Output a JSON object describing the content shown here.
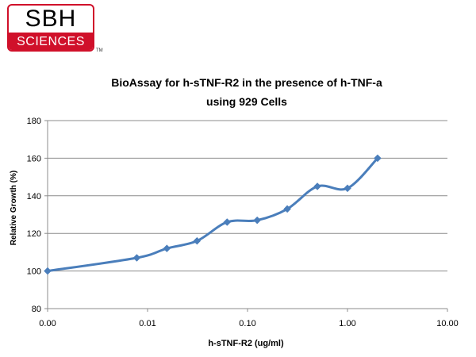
{
  "logo": {
    "top_text": "SBH",
    "bottom_text": "SCIENCES",
    "tm": "TM",
    "colors": {
      "red": "#d0102a",
      "black": "#000000"
    }
  },
  "chart_data": {
    "type": "line",
    "title_lines": [
      "BioAssay for h-sTNF-R2  in the presence of h-TNF-a",
      "using 929 Cells"
    ],
    "xlabel": "h-sTNF-R2 (ug/ml)",
    "ylabel": "Relative Growth (%)",
    "x_scale": "log",
    "xlim": [
      0.001,
      10
    ],
    "x_tick_values": [
      0.001,
      0.01,
      0.1,
      1,
      10
    ],
    "x_tick_labels": [
      "0.00",
      "0.01",
      "0.10",
      "1.00",
      "10.00"
    ],
    "ylim": [
      80,
      180
    ],
    "y_ticks": [
      80,
      100,
      120,
      140,
      160,
      180
    ],
    "grid": "horizontal",
    "legend": "none",
    "series": [
      {
        "color": "#4a7ebb",
        "marker": "diamond",
        "smooth": true,
        "x": [
          0.001,
          0.0078,
          0.0156,
          0.03125,
          0.0625,
          0.125,
          0.25,
          0.5,
          1.0,
          2.0
        ],
        "y": [
          100,
          107,
          112,
          116,
          126,
          127,
          133,
          145,
          144,
          160
        ]
      }
    ]
  }
}
